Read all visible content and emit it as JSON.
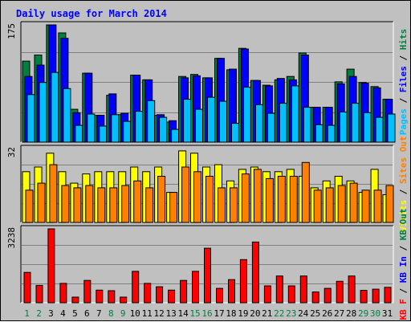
{
  "chart_data": {
    "type": "bar",
    "title": "Daily usage for March 2014",
    "days": [
      "1",
      "2",
      "3",
      "4",
      "5",
      "6",
      "7",
      "8",
      "9",
      "10",
      "11",
      "12",
      "13",
      "14",
      "15",
      "16",
      "17",
      "18",
      "19",
      "20",
      "21",
      "22",
      "23",
      "24",
      "25",
      "26",
      "27",
      "28",
      "29",
      "30",
      "31"
    ],
    "weekend_days": [
      "1",
      "2",
      "8",
      "9",
      "15",
      "16",
      "22",
      "23",
      "29",
      "30"
    ],
    "colors": {
      "title": "#0000ff",
      "hits": "#008040",
      "files": "#0000ff",
      "pages": "#00c0ff",
      "visits": "#ffff00",
      "sites": "#ff8000",
      "kbf": "#ff0000",
      "kbin": "#0000ff",
      "kbout": "#008040",
      "weekday_label": "#000000",
      "weekend_label": "#008040",
      "separator": "#000000"
    },
    "panels": [
      {
        "name": "hits-files-pages",
        "ymax_label": "175",
        "ymax": 175,
        "side_labels": [
          {
            "text": "Pages",
            "color": "#00c0ff"
          },
          {
            "text": " / ",
            "color": "#000000"
          },
          {
            "text": "Files",
            "color": "#0000ff"
          },
          {
            "text": " / ",
            "color": "#000000"
          },
          {
            "text": "Hits",
            "color": "#008040"
          }
        ],
        "series": [
          {
            "name": "Hits",
            "color": "#008040",
            "values": [
              121,
              130,
              175,
              163,
              49,
              103,
              40,
              70,
              41,
              100,
              93,
              40,
              30,
              98,
              101,
              96,
              125,
              108,
              140,
              92,
              85,
              93,
              98,
              133,
              52,
              52,
              90,
              109,
              89,
              83,
              64
            ]
          },
          {
            "name": "Files",
            "color": "#0000ff",
            "values": [
              98,
              115,
              175,
              155,
              44,
              103,
              40,
              72,
              43,
              100,
              93,
              41,
              32,
              96,
              99,
              96,
              125,
              109,
              139,
              92,
              84,
              95,
              93,
              130,
              52,
              52,
              87,
              98,
              88,
              81,
              64
            ]
          },
          {
            "name": "Pages",
            "color": "#00c0ff",
            "values": [
              71,
              89,
              104,
              80,
              25,
              42,
              24,
              41,
              31,
              46,
              62,
              37,
              19,
              64,
              49,
              67,
              61,
              28,
              82,
              56,
              43,
              58,
              84,
              52,
              26,
              25,
              45,
              58,
              44,
              37,
              42
            ]
          }
        ]
      },
      {
        "name": "visits-sites",
        "ymax_label": "32",
        "ymax": 32,
        "side_labels": [
          {
            "text": "Visits",
            "color": "#ffff00"
          },
          {
            "text": " / ",
            "color": "#000000"
          },
          {
            "text": "Sites",
            "color": "#ff8000"
          },
          {
            "text": " Out",
            "color": "#ff8000"
          }
        ],
        "series": [
          {
            "name": "Visits",
            "color": "#ffff00",
            "values": [
              22,
              24,
              30,
              22,
              17,
              21,
              22,
              22,
              22,
              24,
              22,
              24,
              13,
              31,
              30,
              24,
              25,
              18,
              23,
              24,
              22,
              22,
              23,
              20,
              15,
              18,
              20,
              18,
              13,
              23,
              12
            ]
          },
          {
            "name": "Sites",
            "color": "#ff8000",
            "values": [
              14,
              17,
              25,
              16,
              15,
              16,
              15,
              15,
              16,
              18,
              15,
              20,
              13,
              24,
              22,
              20,
              15,
              15,
              21,
              23,
              19,
              20,
              20,
              26,
              14,
              15,
              16,
              17,
              14,
              14,
              16
            ]
          }
        ]
      },
      {
        "name": "kbytes",
        "ymax_label": "3238",
        "ymax": 3238,
        "side_labels": [
          {
            "text": "KB F",
            "color": "#ff0000"
          },
          {
            "text": " / ",
            "color": "#000000"
          },
          {
            "text": "KB In",
            "color": "#0000ff"
          },
          {
            "text": " / ",
            "color": "#000000"
          },
          {
            "text": "KB Out",
            "color": "#008040"
          }
        ],
        "series": [
          {
            "name": "KB F",
            "color": "#ff0000",
            "values": [
              1330,
              760,
              3238,
              848,
              246,
              979,
              554,
              528,
              246,
              1375,
              848,
              702,
              551,
              979,
              1375,
              2390,
              629,
              1015,
              1890,
              2660,
              740,
              1173,
              740,
              1173,
              473,
              630,
              940,
              1173,
              541,
              596,
              676
            ]
          }
        ]
      }
    ]
  }
}
